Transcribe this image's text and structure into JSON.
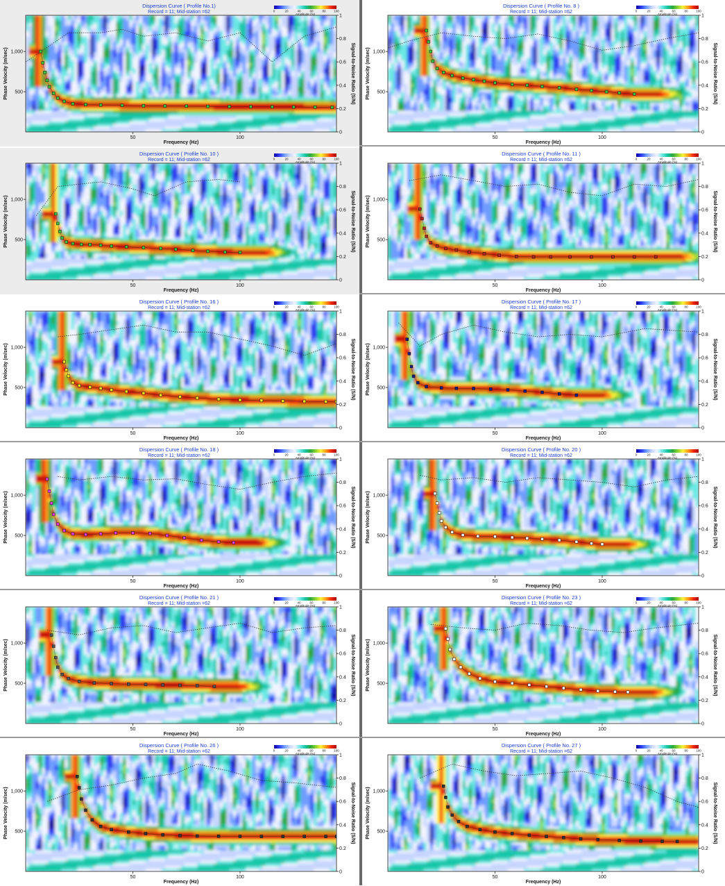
{
  "common": {
    "subtitle": "Record = 11; Mid-station =62",
    "xlabel": "Frequency (Hz)",
    "ylabel": "Phase Velocity (m/sec)",
    "y2label": "Signal-to-Noise Ratio (S/N)",
    "colorbar_label": "Amplitude (%)",
    "colorbar_ticks": [
      "0",
      "20",
      "40",
      "60",
      "80",
      "100"
    ],
    "x_ticks": [
      "50",
      "100"
    ],
    "y_ticks": [
      "500",
      "1,000"
    ],
    "y2_ticks": [
      "0",
      "0.2",
      "0.4",
      "0.6",
      "0.8",
      "1"
    ],
    "xlim": [
      0,
      145
    ],
    "ylim": [
      0,
      1450
    ],
    "y2lim": [
      0,
      1
    ],
    "colormap": [
      "#0c00a0",
      "#2d3cf0",
      "#6f9cff",
      "#c8d6ff",
      "#f2f4ff",
      "#6ce8e4",
      "#18c6a8",
      "#2aa83c",
      "#8ed434",
      "#fff23a",
      "#ff9a14",
      "#f02410",
      "#a80a0a"
    ]
  },
  "chart_data": [
    {
      "type": "heatmap",
      "title": "Dispersion Curve ( Profile No.1)",
      "marker_color": "#3fbf3f",
      "points": [
        [
          7,
          1000
        ],
        [
          8,
          860
        ],
        [
          9,
          740
        ],
        [
          10,
          640
        ],
        [
          11,
          560
        ],
        [
          13,
          480
        ],
        [
          15,
          420
        ],
        [
          18,
          380
        ],
        [
          22,
          350
        ],
        [
          28,
          340
        ],
        [
          35,
          335
        ],
        [
          45,
          330
        ],
        [
          55,
          325
        ],
        [
          65,
          322
        ],
        [
          75,
          320
        ],
        [
          85,
          318
        ],
        [
          95,
          315
        ],
        [
          105,
          313
        ],
        [
          115,
          312
        ],
        [
          125,
          310
        ],
        [
          135,
          308
        ],
        [
          143,
          305
        ]
      ],
      "snr": [
        [
          0,
          0.6
        ],
        [
          8,
          0.7
        ],
        [
          20,
          0.85
        ],
        [
          35,
          0.85
        ],
        [
          45,
          0.88
        ],
        [
          55,
          0.82
        ],
        [
          70,
          0.85
        ],
        [
          85,
          0.78
        ],
        [
          100,
          0.85
        ],
        [
          115,
          0.6
        ],
        [
          130,
          0.82
        ],
        [
          145,
          0.9
        ]
      ]
    },
    {
      "type": "heatmap",
      "title": "Dispersion Curve ( Profile No. 8 )",
      "marker_color": "#3fbf3f",
      "points": [
        [
          18,
          1260
        ],
        [
          19,
          1120
        ],
        [
          20,
          1000
        ],
        [
          21,
          880
        ],
        [
          23,
          790
        ],
        [
          26,
          740
        ],
        [
          30,
          700
        ],
        [
          35,
          670
        ],
        [
          40,
          650
        ],
        [
          45,
          630
        ],
        [
          50,
          610
        ],
        [
          58,
          590
        ],
        [
          65,
          580
        ],
        [
          72,
          565
        ],
        [
          80,
          550
        ],
        [
          88,
          530
        ],
        [
          95,
          515
        ],
        [
          102,
          500
        ],
        [
          108,
          485
        ],
        [
          115,
          470
        ]
      ],
      "snr": [
        [
          0,
          0.72
        ],
        [
          10,
          0.78
        ],
        [
          25,
          0.85
        ],
        [
          40,
          0.82
        ],
        [
          55,
          0.8
        ],
        [
          70,
          0.84
        ],
        [
          85,
          0.78
        ],
        [
          100,
          0.7
        ],
        [
          115,
          0.74
        ],
        [
          130,
          0.8
        ],
        [
          145,
          0.85
        ]
      ]
    },
    {
      "type": "heatmap",
      "title": "Dispersion Curve ( Profile No. 10 )",
      "marker_color": "#3fbf3f",
      "points": [
        [
          14,
          820
        ],
        [
          15,
          700
        ],
        [
          16,
          600
        ],
        [
          17,
          520
        ],
        [
          19,
          470
        ],
        [
          22,
          450
        ],
        [
          26,
          440
        ],
        [
          30,
          438
        ],
        [
          35,
          430
        ],
        [
          40,
          420
        ],
        [
          47,
          410
        ],
        [
          55,
          400
        ],
        [
          63,
          390
        ],
        [
          70,
          380
        ],
        [
          78,
          365
        ],
        [
          85,
          355
        ],
        [
          93,
          345
        ],
        [
          100,
          340
        ]
      ],
      "snr": [
        [
          5,
          0.55
        ],
        [
          15,
          0.8
        ],
        [
          25,
          0.82
        ],
        [
          35,
          0.84
        ],
        [
          50,
          0.78
        ],
        [
          60,
          0.72
        ],
        [
          75,
          0.84
        ],
        [
          90,
          0.86
        ],
        [
          100,
          0.84
        ]
      ]
    },
    {
      "type": "heatmap",
      "title": "Dispersion Curve ( Profile No. 11 )",
      "marker_color": "#b22222",
      "points": [
        [
          15,
          880
        ],
        [
          16,
          760
        ],
        [
          17,
          640
        ],
        [
          18,
          540
        ],
        [
          20,
          460
        ],
        [
          23,
          420
        ],
        [
          27,
          390
        ],
        [
          32,
          370
        ],
        [
          38,
          345
        ],
        [
          45,
          325
        ],
        [
          52,
          305
        ],
        [
          60,
          290
        ],
        [
          68,
          285
        ],
        [
          76,
          285
        ],
        [
          85,
          285
        ],
        [
          95,
          285
        ],
        [
          105,
          285
        ],
        [
          115,
          285
        ],
        [
          125,
          285
        ]
      ],
      "snr": [
        [
          10,
          0.85
        ],
        [
          25,
          0.9
        ],
        [
          40,
          0.85
        ],
        [
          55,
          0.8
        ],
        [
          70,
          0.82
        ],
        [
          85,
          0.75
        ],
        [
          100,
          0.72
        ],
        [
          115,
          0.82
        ],
        [
          130,
          0.8
        ],
        [
          145,
          0.86
        ]
      ]
    },
    {
      "type": "heatmap",
      "title": "Dispersion Curve ( Profile No. 16 )",
      "marker_color": "#f2e21a",
      "points": [
        [
          18,
          820
        ],
        [
          19,
          720
        ],
        [
          20,
          640
        ],
        [
          22,
          560
        ],
        [
          25,
          525
        ],
        [
          30,
          505
        ],
        [
          35,
          490
        ],
        [
          40,
          470
        ],
        [
          47,
          450
        ],
        [
          55,
          430
        ],
        [
          63,
          405
        ],
        [
          72,
          385
        ],
        [
          80,
          370
        ],
        [
          90,
          355
        ],
        [
          100,
          345
        ],
        [
          110,
          338
        ],
        [
          120,
          332
        ],
        [
          130,
          328
        ],
        [
          140,
          325
        ],
        [
          145,
          325
        ]
      ],
      "snr": [
        [
          15,
          0.78
        ],
        [
          25,
          0.8
        ],
        [
          40,
          0.84
        ],
        [
          55,
          0.88
        ],
        [
          70,
          0.82
        ],
        [
          85,
          0.82
        ],
        [
          100,
          0.76
        ],
        [
          115,
          0.7
        ],
        [
          130,
          0.62
        ],
        [
          145,
          0.72
        ]
      ]
    },
    {
      "type": "heatmap",
      "title": "Dispersion Curve ( Profile No. 17 )",
      "marker_color": "#1a1a80",
      "points": [
        [
          9,
          1100
        ],
        [
          10,
          920
        ],
        [
          11,
          760
        ],
        [
          12,
          640
        ],
        [
          14,
          560
        ],
        [
          18,
          510
        ],
        [
          25,
          495
        ],
        [
          32,
          490
        ],
        [
          40,
          488
        ],
        [
          48,
          480
        ],
        [
          56,
          470
        ],
        [
          64,
          455
        ],
        [
          72,
          440
        ],
        [
          80,
          420
        ],
        [
          88,
          405
        ]
      ],
      "snr": [
        [
          5,
          0.9
        ],
        [
          15,
          0.7
        ],
        [
          25,
          0.8
        ],
        [
          40,
          0.88
        ],
        [
          55,
          0.82
        ],
        [
          70,
          0.78
        ],
        [
          85,
          0.8
        ],
        [
          100,
          0.78
        ],
        [
          120,
          0.85
        ],
        [
          145,
          0.82
        ]
      ]
    },
    {
      "type": "heatmap",
      "title": "Dispersion Curve ( Profile No. 18 )",
      "marker_color": "#e23ae2",
      "points": [
        [
          10,
          1200
        ],
        [
          11,
          1050
        ],
        [
          12,
          900
        ],
        [
          13,
          760
        ],
        [
          15,
          640
        ],
        [
          18,
          560
        ],
        [
          22,
          520
        ],
        [
          28,
          510
        ],
        [
          35,
          520
        ],
        [
          42,
          530
        ],
        [
          50,
          530
        ],
        [
          58,
          525
        ],
        [
          66,
          500
        ],
        [
          74,
          470
        ],
        [
          82,
          440
        ],
        [
          90,
          420
        ],
        [
          97,
          410
        ]
      ],
      "snr": [
        [
          15,
          0.85
        ],
        [
          25,
          0.82
        ],
        [
          40,
          0.85
        ],
        [
          55,
          0.82
        ],
        [
          70,
          0.83
        ],
        [
          85,
          0.78
        ],
        [
          100,
          0.74
        ],
        [
          115,
          0.8
        ],
        [
          130,
          0.85
        ],
        [
          145,
          0.88
        ]
      ]
    },
    {
      "type": "heatmap",
      "title": "Dispersion Curve ( Profile No. 20 )",
      "marker_color": "#ffffff",
      "points": [
        [
          22,
          1020
        ],
        [
          23,
          900
        ],
        [
          24,
          780
        ],
        [
          25,
          680
        ],
        [
          27,
          600
        ],
        [
          30,
          540
        ],
        [
          35,
          505
        ],
        [
          42,
          490
        ],
        [
          50,
          485
        ],
        [
          58,
          475
        ],
        [
          65,
          465
        ],
        [
          72,
          455
        ],
        [
          80,
          440
        ],
        [
          88,
          420
        ],
        [
          95,
          400
        ],
        [
          100,
          390
        ]
      ],
      "snr": [
        [
          15,
          0.86
        ],
        [
          25,
          0.82
        ],
        [
          40,
          0.84
        ],
        [
          55,
          0.8
        ],
        [
          70,
          0.84
        ],
        [
          85,
          0.82
        ],
        [
          100,
          0.8
        ],
        [
          115,
          0.76
        ],
        [
          130,
          0.82
        ],
        [
          145,
          0.85
        ]
      ]
    },
    {
      "type": "heatmap",
      "title": "Dispersion Curve ( Profile No. 21 )",
      "marker_color": "#555555",
      "points": [
        [
          12,
          1100
        ],
        [
          13,
          960
        ],
        [
          14,
          820
        ],
        [
          15,
          700
        ],
        [
          17,
          610
        ],
        [
          20,
          560
        ],
        [
          25,
          525
        ],
        [
          32,
          505
        ],
        [
          40,
          495
        ],
        [
          48,
          490
        ],
        [
          56,
          485
        ],
        [
          64,
          480
        ],
        [
          72,
          475
        ],
        [
          80,
          470
        ],
        [
          88,
          460
        ]
      ],
      "snr": [
        [
          10,
          0.8
        ],
        [
          25,
          0.76
        ],
        [
          40,
          0.82
        ],
        [
          55,
          0.84
        ],
        [
          70,
          0.78
        ],
        [
          85,
          0.82
        ],
        [
          100,
          0.86
        ],
        [
          115,
          0.78
        ],
        [
          130,
          0.82
        ],
        [
          145,
          0.84
        ]
      ]
    },
    {
      "type": "heatmap",
      "title": "Dispersion Curve ( Profile No. 23 )",
      "marker_color": "#ffffff",
      "points": [
        [
          27,
          1180
        ],
        [
          28,
          1050
        ],
        [
          29,
          920
        ],
        [
          31,
          800
        ],
        [
          34,
          700
        ],
        [
          38,
          620
        ],
        [
          43,
          560
        ],
        [
          50,
          520
        ],
        [
          58,
          500
        ],
        [
          66,
          480
        ],
        [
          74,
          460
        ],
        [
          82,
          440
        ],
        [
          90,
          420
        ],
        [
          98,
          405
        ],
        [
          106,
          395
        ],
        [
          112,
          390
        ]
      ],
      "snr": [
        [
          20,
          0.85
        ],
        [
          35,
          0.82
        ],
        [
          50,
          0.8
        ],
        [
          65,
          0.86
        ],
        [
          80,
          0.84
        ],
        [
          95,
          0.8
        ],
        [
          110,
          0.78
        ],
        [
          125,
          0.82
        ],
        [
          145,
          0.86
        ]
      ]
    },
    {
      "type": "heatmap",
      "title": "Dispersion Curve ( Profile No. 26 )",
      "marker_color": "#333333",
      "points": [
        [
          24,
          1180
        ],
        [
          25,
          1040
        ],
        [
          26,
          900
        ],
        [
          28,
          760
        ],
        [
          31,
          640
        ],
        [
          35,
          560
        ],
        [
          40,
          520
        ],
        [
          48,
          490
        ],
        [
          56,
          470
        ],
        [
          64,
          455
        ],
        [
          72,
          445
        ],
        [
          80,
          440
        ],
        [
          90,
          438
        ],
        [
          100,
          436
        ],
        [
          110,
          435
        ],
        [
          120,
          435
        ],
        [
          130,
          435
        ],
        [
          140,
          435
        ],
        [
          145,
          435
        ]
      ],
      "snr": [
        [
          10,
          0.6
        ],
        [
          25,
          0.7
        ],
        [
          40,
          0.74
        ],
        [
          55,
          0.8
        ],
        [
          70,
          0.84
        ],
        [
          80,
          0.92
        ],
        [
          95,
          0.86
        ],
        [
          110,
          0.78
        ],
        [
          125,
          0.76
        ],
        [
          145,
          0.72
        ]
      ]
    },
    {
      "type": "heatmap",
      "title": "Dispersion Curve ( Profile No. 27 )",
      "marker_color": "#333333",
      "points": [
        [
          26,
          1060
        ],
        [
          27,
          920
        ],
        [
          28,
          800
        ],
        [
          30,
          700
        ],
        [
          33,
          620
        ],
        [
          37,
          560
        ],
        [
          43,
          520
        ],
        [
          50,
          490
        ],
        [
          58,
          470
        ],
        [
          66,
          450
        ],
        [
          74,
          435
        ],
        [
          82,
          420
        ],
        [
          90,
          405
        ],
        [
          98,
          395
        ],
        [
          108,
          385
        ],
        [
          118,
          378
        ],
        [
          128,
          375
        ],
        [
          135,
          372
        ]
      ],
      "snr": [
        [
          15,
          0.8
        ],
        [
          30,
          0.92
        ],
        [
          45,
          0.86
        ],
        [
          60,
          0.82
        ],
        [
          75,
          0.84
        ],
        [
          90,
          0.86
        ],
        [
          105,
          0.8
        ],
        [
          120,
          0.72
        ],
        [
          135,
          0.6
        ],
        [
          145,
          0.55
        ]
      ]
    }
  ]
}
